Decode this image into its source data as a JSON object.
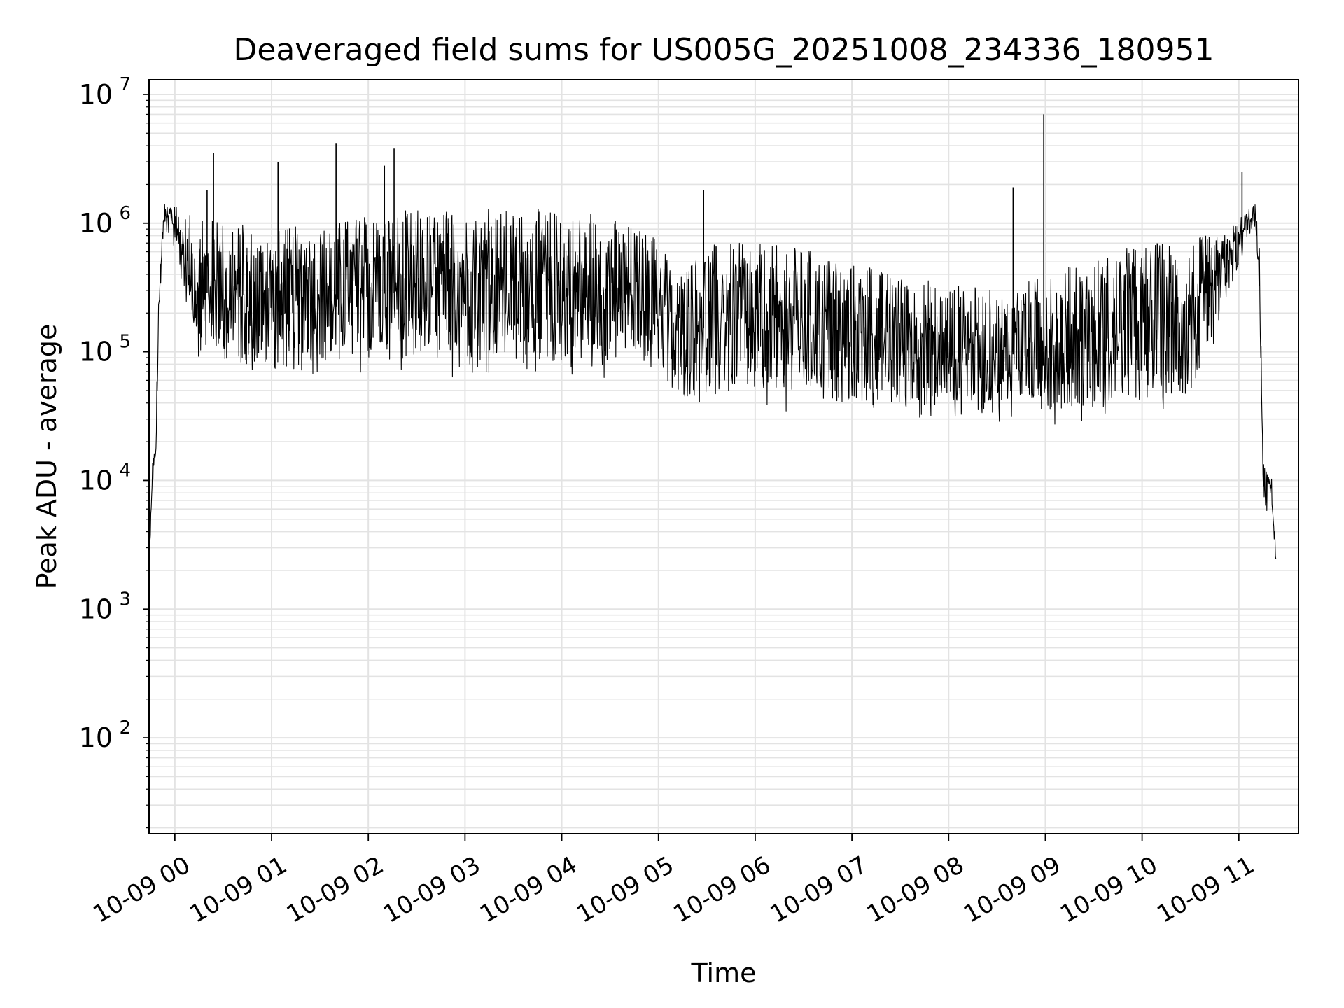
{
  "chart_data": {
    "type": "line",
    "title": "Deaveraged field sums for US005G_20251008_234336_180951",
    "xlabel": "Time",
    "ylabel": "Peak ADU - average",
    "yscale": "log",
    "ylim": [
      18,
      13000000
    ],
    "xlim": [
      "10-08 23:44",
      "10-09 11:37"
    ],
    "grid": true,
    "y_ticks": [
      {
        "value": 100,
        "base": "10",
        "exp": "2"
      },
      {
        "value": 1000,
        "base": "10",
        "exp": "3"
      },
      {
        "value": 10000,
        "base": "10",
        "exp": "4"
      },
      {
        "value": 100000,
        "base": "10",
        "exp": "5"
      },
      {
        "value": 1000000,
        "base": "10",
        "exp": "6"
      },
      {
        "value": 10000000,
        "base": "10",
        "exp": "7"
      }
    ],
    "x_ticks": [
      {
        "time": "10-09 00:00",
        "label": "10-09 00"
      },
      {
        "time": "10-09 01:00",
        "label": "10-09 01"
      },
      {
        "time": "10-09 02:00",
        "label": "10-09 02"
      },
      {
        "time": "10-09 03:00",
        "label": "10-09 03"
      },
      {
        "time": "10-09 04:00",
        "label": "10-09 04"
      },
      {
        "time": "10-09 05:00",
        "label": "10-09 05"
      },
      {
        "time": "10-09 06:00",
        "label": "10-09 06"
      },
      {
        "time": "10-09 07:00",
        "label": "10-09 07"
      },
      {
        "time": "10-09 08:00",
        "label": "10-09 08"
      },
      {
        "time": "10-09 09:00",
        "label": "10-09 09"
      },
      {
        "time": "10-09 10:00",
        "label": "10-09 10"
      },
      {
        "time": "10-09 11:00",
        "label": "10-09 11"
      }
    ],
    "series": [
      {
        "color": "#000000",
        "envelope": [
          {
            "x": "10-08 23:44",
            "low": 2000,
            "high": 2000
          },
          {
            "x": "10-08 23:46",
            "low": 9000,
            "high": 15000
          },
          {
            "x": "10-08 23:48",
            "low": 9000,
            "high": 20000
          },
          {
            "x": "10-08 23:50",
            "low": 150000,
            "high": 300000
          },
          {
            "x": "10-08 23:53",
            "low": 800000,
            "high": 1400000
          },
          {
            "x": "10-08 23:58",
            "low": 700000,
            "high": 1500000
          },
          {
            "x": "10-09 00:05",
            "low": 300000,
            "high": 1200000
          },
          {
            "x": "10-09 00:15",
            "low": 80000,
            "high": 1100000
          },
          {
            "x": "10-09 00:30",
            "low": 65000,
            "high": 1100000
          },
          {
            "x": "10-09 01:00",
            "low": 55000,
            "high": 900000
          },
          {
            "x": "10-09 01:30",
            "low": 60000,
            "high": 1000000
          },
          {
            "x": "10-09 02:00",
            "low": 65000,
            "high": 1200000
          },
          {
            "x": "10-09 02:30",
            "low": 65000,
            "high": 1300000
          },
          {
            "x": "10-09 03:00",
            "low": 60000,
            "high": 1300000
          },
          {
            "x": "10-09 03:30",
            "low": 60000,
            "high": 1300000
          },
          {
            "x": "10-09 04:00",
            "low": 60000,
            "high": 1300000
          },
          {
            "x": "10-09 04:30",
            "low": 60000,
            "high": 1150000
          },
          {
            "x": "10-09 04:50",
            "low": 70000,
            "high": 900000
          },
          {
            "x": "10-09 05:00",
            "low": 60000,
            "high": 800000
          },
          {
            "x": "10-09 05:10",
            "low": 35000,
            "high": 400000
          },
          {
            "x": "10-09 05:30",
            "low": 35000,
            "high": 700000
          },
          {
            "x": "10-09 06:00",
            "low": 33000,
            "high": 700000
          },
          {
            "x": "10-09 06:30",
            "low": 32000,
            "high": 650000
          },
          {
            "x": "10-09 07:00",
            "low": 30000,
            "high": 500000
          },
          {
            "x": "10-09 07:30",
            "low": 28000,
            "high": 400000
          },
          {
            "x": "10-09 08:00",
            "low": 27000,
            "high": 350000
          },
          {
            "x": "10-09 08:30",
            "low": 28000,
            "high": 300000
          },
          {
            "x": "10-09 09:00",
            "low": 27000,
            "high": 400000
          },
          {
            "x": "10-09 09:30",
            "low": 28000,
            "high": 550000
          },
          {
            "x": "10-09 10:00",
            "low": 30000,
            "high": 700000
          },
          {
            "x": "10-09 10:30",
            "low": 35000,
            "high": 800000
          },
          {
            "x": "10-09 10:50",
            "low": 150000,
            "high": 800000
          },
          {
            "x": "10-09 11:05",
            "low": 700000,
            "high": 1300000
          },
          {
            "x": "10-09 11:10",
            "low": 900000,
            "high": 1500000
          },
          {
            "x": "10-09 11:13",
            "low": 200000,
            "high": 600000
          },
          {
            "x": "10-09 11:15",
            "low": 8000,
            "high": 15000
          },
          {
            "x": "10-09 11:17",
            "low": 5000,
            "high": 12000
          },
          {
            "x": "10-09 11:20",
            "low": 8000,
            "high": 12000
          },
          {
            "x": "10-09 11:23",
            "low": 2000,
            "high": 3000
          }
        ],
        "spikes": [
          {
            "x": "10-09 00:20",
            "y": 1800000
          },
          {
            "x": "10-09 00:24",
            "y": 3500000
          },
          {
            "x": "10-09 01:04",
            "y": 3000000
          },
          {
            "x": "10-09 01:40",
            "y": 4200000
          },
          {
            "x": "10-09 02:10",
            "y": 2800000
          },
          {
            "x": "10-09 02:16",
            "y": 3800000
          },
          {
            "x": "10-09 05:28",
            "y": 1800000
          },
          {
            "x": "10-09 08:40",
            "y": 1900000
          },
          {
            "x": "10-09 08:59",
            "y": 7000000
          },
          {
            "x": "10-09 11:02",
            "y": 2500000
          }
        ]
      }
    ]
  }
}
